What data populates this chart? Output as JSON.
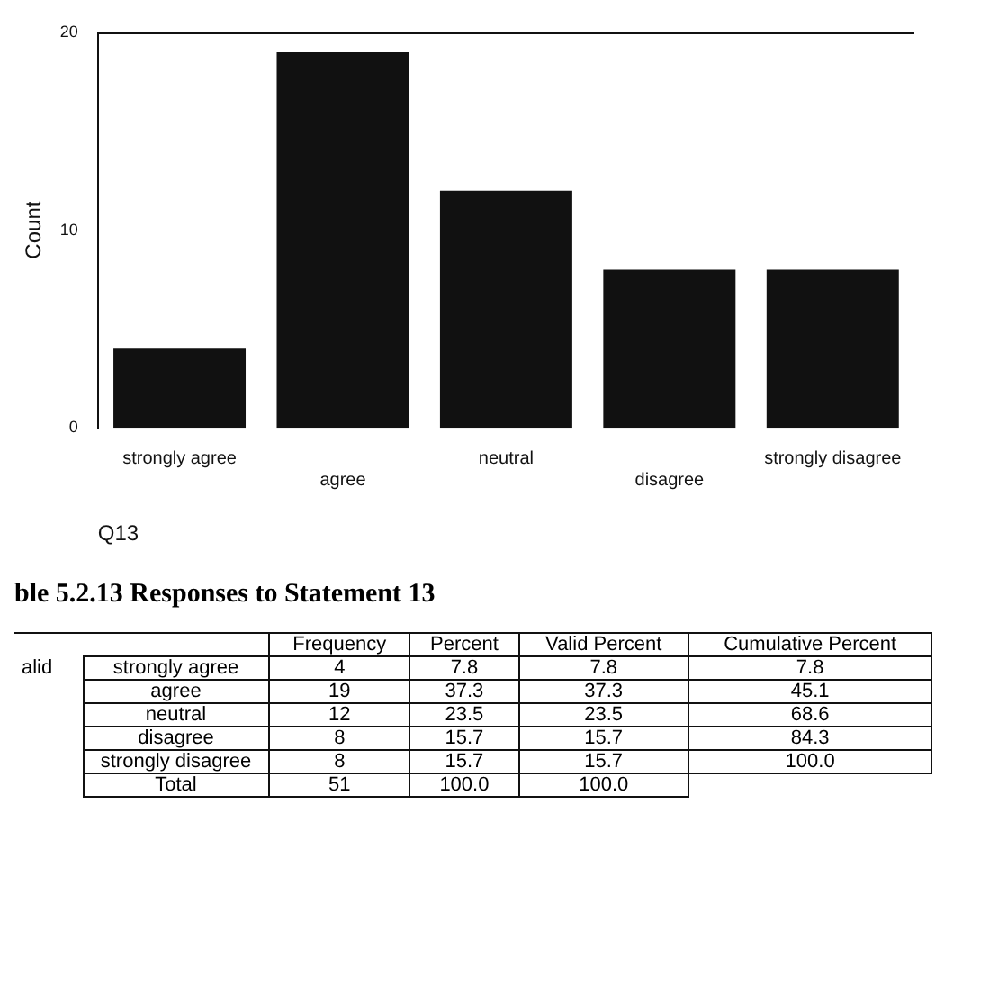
{
  "chart_data": [
    {
      "type": "bar",
      "xlabel": "Q13",
      "ylabel": "Count",
      "categories": [
        "strongly agree",
        "agree",
        "neutral",
        "disagree",
        "strongly disagree"
      ],
      "values": [
        4,
        19,
        12,
        8,
        8
      ],
      "color": "#111111",
      "ylim": [
        0,
        20
      ],
      "yticks": [
        0,
        10,
        20
      ],
      "grid": false,
      "legend": false
    },
    {
      "type": "other",
      "title": "ble 5.2.13 Responses to Statement 13",
      "annotations": [
        "alid"
      ],
      "categories": [
        "Frequency",
        "Percent",
        "Valid Percent",
        "Cumulative Percent"
      ],
      "y_categories": [
        "strongly agree",
        "agree",
        "neutral",
        "disagree",
        "strongly disagree",
        "Total"
      ],
      "cell_labels": [
        [
          "4",
          "7.8",
          "7.8",
          "7.8"
        ],
        [
          "19",
          "37.3",
          "37.3",
          "45.1"
        ],
        [
          "12",
          "23.5",
          "23.5",
          "68.6"
        ],
        [
          "8",
          "15.7",
          "15.7",
          "84.3"
        ],
        [
          "8",
          "15.7",
          "15.7",
          "100.0"
        ],
        [
          "51",
          "100.0",
          "100.0",
          null
        ]
      ]
    }
  ]
}
